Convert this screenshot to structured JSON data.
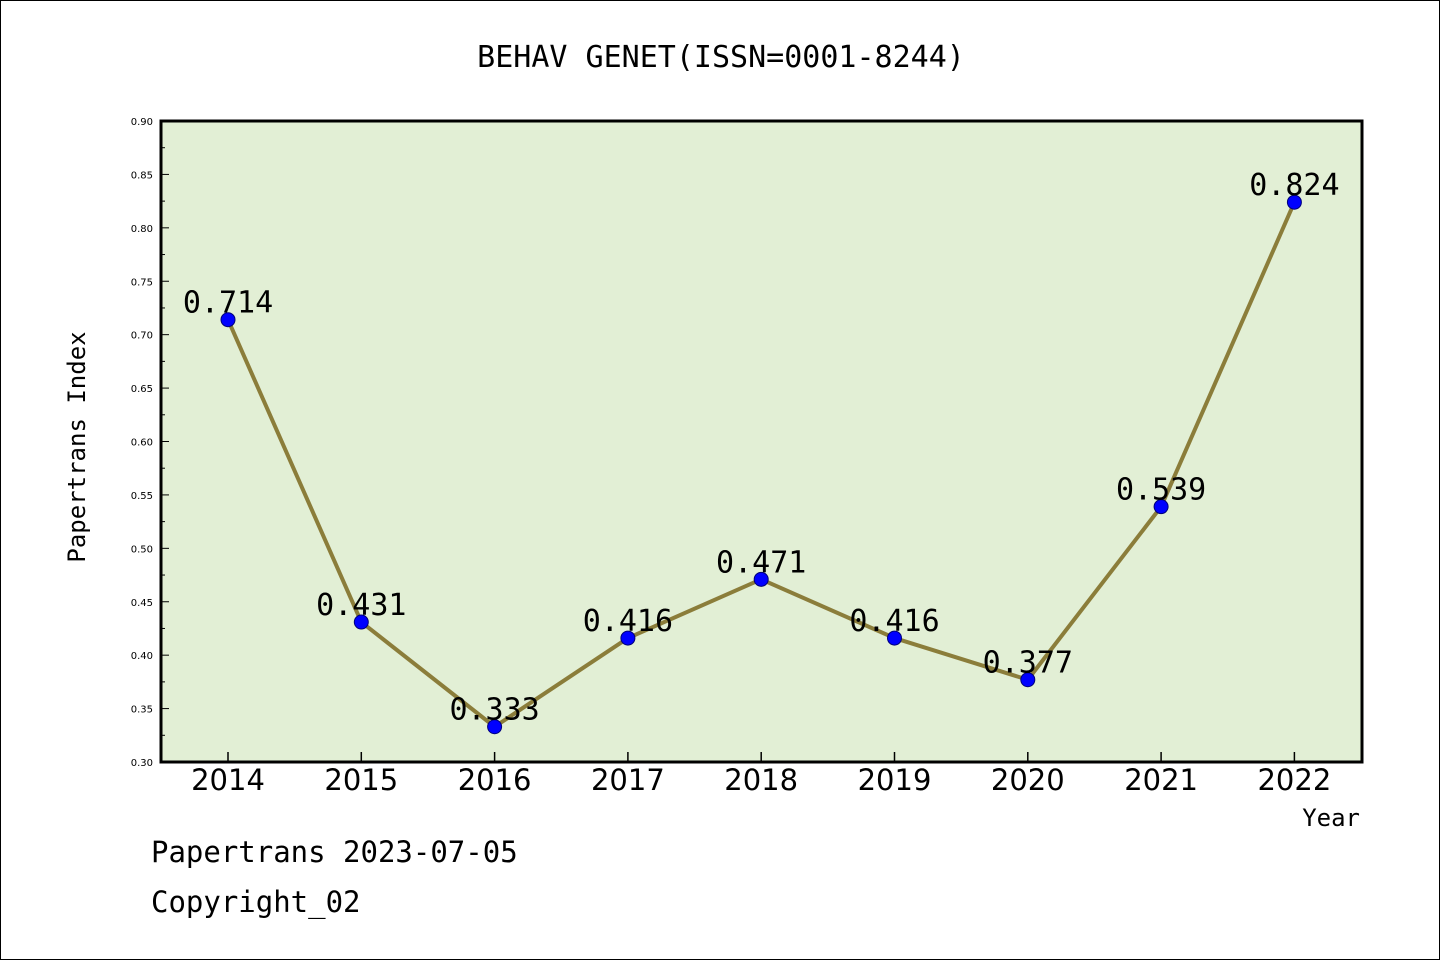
{
  "chart_data": {
    "type": "line",
    "title": "BEHAV GENET(ISSN=0001-8244)",
    "xlabel": "Year",
    "ylabel": "Papertrans Index",
    "categories": [
      "2014",
      "2015",
      "2016",
      "2017",
      "2018",
      "2019",
      "2020",
      "2021",
      "2022"
    ],
    "values": [
      0.714,
      0.431,
      0.333,
      0.416,
      0.471,
      0.416,
      0.377,
      0.539,
      0.824
    ],
    "data_labels": [
      "0.714",
      "0.431",
      "0.333",
      "0.416",
      "0.471",
      "0.416",
      "0.377",
      "0.539",
      "0.824"
    ],
    "ylim": [
      0.3,
      0.9
    ],
    "yticks": [
      "0.30",
      "0.35",
      "0.40",
      "0.45",
      "0.50",
      "0.55",
      "0.60",
      "0.65",
      "0.70",
      "0.75",
      "0.80",
      "0.85",
      "0.90"
    ],
    "grid": false,
    "colors": {
      "plot_background": "#e2efd5",
      "line": "#8b7d3a",
      "marker": "#0000ff"
    }
  },
  "footer": {
    "line1": "Papertrans 2023-07-05",
    "line2": "Copyright_02"
  }
}
